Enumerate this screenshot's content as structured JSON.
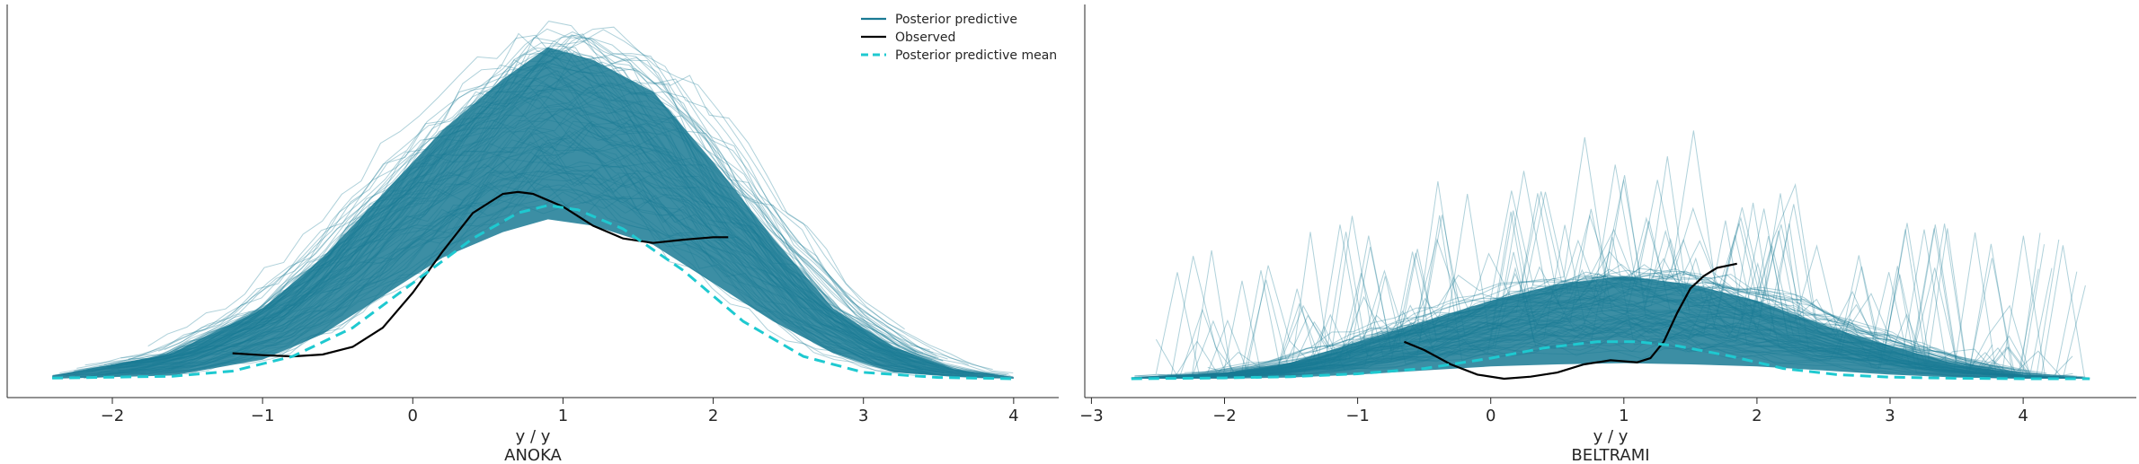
{
  "colors": {
    "posterior_predictive": "#1a7a94",
    "observed": "#000000",
    "posterior_predictive_mean": "#1ec9d0",
    "axis": "#262626"
  },
  "legend": {
    "placement": "top-right of first panel",
    "items": [
      {
        "label": "Posterior predictive",
        "style": "solid",
        "color_key": "posterior_predictive"
      },
      {
        "label": "Observed",
        "style": "solid",
        "color_key": "observed"
      },
      {
        "label": "Posterior predictive mean",
        "style": "dashed",
        "color_key": "posterior_predictive_mean"
      }
    ]
  },
  "chart_data": [
    {
      "type": "line",
      "title": "ANOKA",
      "xlabel": "y / y",
      "ylabel": "",
      "xlim": [
        -2.7,
        4.3
      ],
      "ylim": [
        0,
        0.58
      ],
      "xticks": [
        -2,
        -1,
        0,
        1,
        2,
        3,
        4
      ],
      "grid": false,
      "posterior_predictive_band": {
        "x": [
          -2.4,
          -1.6,
          -1.0,
          -0.6,
          -0.2,
          0.2,
          0.6,
          0.9,
          1.2,
          1.6,
          2.0,
          2.4,
          2.8,
          3.2,
          3.6,
          4.0
        ],
        "lower": [
          0.0,
          0.005,
          0.03,
          0.07,
          0.13,
          0.19,
          0.23,
          0.25,
          0.24,
          0.21,
          0.15,
          0.09,
          0.04,
          0.01,
          0.003,
          0.0
        ],
        "upper": [
          0.005,
          0.04,
          0.11,
          0.19,
          0.29,
          0.39,
          0.47,
          0.52,
          0.5,
          0.45,
          0.34,
          0.22,
          0.11,
          0.05,
          0.015,
          0.003
        ]
      },
      "series": [
        {
          "name": "Observed",
          "x": [
            -1.2,
            -1.0,
            -0.8,
            -0.6,
            -0.4,
            -0.2,
            0.0,
            0.2,
            0.4,
            0.6,
            0.7,
            0.8,
            1.0,
            1.2,
            1.4,
            1.6,
            1.8,
            2.0,
            2.1
          ],
          "y": [
            0.04,
            0.037,
            0.035,
            0.038,
            0.05,
            0.08,
            0.135,
            0.2,
            0.26,
            0.29,
            0.293,
            0.29,
            0.27,
            0.24,
            0.22,
            0.213,
            0.218,
            0.222,
            0.222
          ]
        },
        {
          "name": "Posterior predictive mean",
          "x": [
            -2.4,
            -1.6,
            -1.2,
            -0.8,
            -0.4,
            0.0,
            0.4,
            0.7,
            0.9,
            1.1,
            1.4,
            1.8,
            2.2,
            2.6,
            3.0,
            3.5,
            4.0
          ],
          "y": [
            0.001,
            0.004,
            0.012,
            0.035,
            0.08,
            0.15,
            0.22,
            0.26,
            0.272,
            0.265,
            0.235,
            0.17,
            0.09,
            0.035,
            0.01,
            0.002,
            0.0
          ]
        }
      ]
    },
    {
      "type": "line",
      "title": "BELTRAMI",
      "xlabel": "y / y",
      "ylabel": "",
      "xlim": [
        -3.05,
        4.85
      ],
      "ylim": [
        0,
        0.9
      ],
      "xticks": [
        -3,
        -2,
        -1,
        0,
        1,
        2,
        3,
        4
      ],
      "grid": false,
      "posterior_predictive_band": {
        "x": [
          -2.7,
          -2.0,
          -1.5,
          -1.0,
          -0.5,
          0.0,
          0.5,
          1.0,
          1.5,
          2.0,
          2.5,
          3.0,
          3.5,
          4.0,
          4.5
        ],
        "lower": [
          0.0,
          0.0,
          0.003,
          0.01,
          0.02,
          0.03,
          0.035,
          0.038,
          0.035,
          0.03,
          0.02,
          0.01,
          0.003,
          0.0,
          0.0
        ],
        "upper": [
          0.004,
          0.015,
          0.04,
          0.09,
          0.14,
          0.19,
          0.23,
          0.25,
          0.23,
          0.19,
          0.13,
          0.08,
          0.035,
          0.01,
          0.003
        ]
      },
      "series": [
        {
          "name": "Observed",
          "x": [
            -0.65,
            -0.5,
            -0.3,
            -0.1,
            0.1,
            0.3,
            0.5,
            0.7,
            0.9,
            1.1,
            1.2,
            1.3,
            1.4,
            1.5,
            1.6,
            1.7,
            1.85
          ],
          "y": [
            0.09,
            0.07,
            0.035,
            0.01,
            0.0,
            0.005,
            0.015,
            0.035,
            0.045,
            0.04,
            0.05,
            0.09,
            0.16,
            0.22,
            0.25,
            0.27,
            0.28
          ]
        },
        {
          "name": "Posterior predictive mean",
          "x": [
            -2.7,
            -2.0,
            -1.5,
            -1.0,
            -0.5,
            0.0,
            0.4,
            0.8,
            1.1,
            1.4,
            1.8,
            2.2,
            2.6,
            3.0,
            3.5,
            4.0,
            4.5
          ],
          "y": [
            0.0,
            0.002,
            0.005,
            0.012,
            0.025,
            0.05,
            0.075,
            0.09,
            0.09,
            0.08,
            0.055,
            0.025,
            0.01,
            0.004,
            0.001,
            0.0,
            0.0
          ]
        }
      ]
    }
  ]
}
